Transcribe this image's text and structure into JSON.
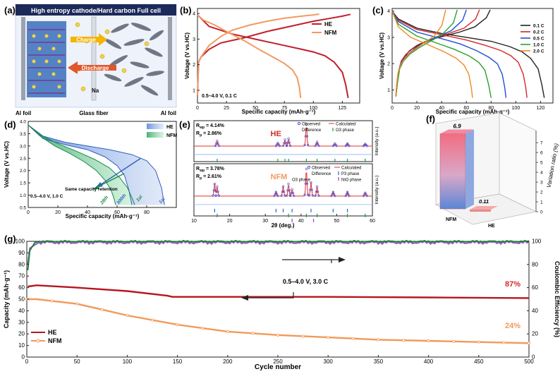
{
  "panels": {
    "a": {
      "label": "(a)",
      "title": "High entropy cathode/Hard carbon Full cell",
      "charge": "Charge",
      "discharge": "Discharge",
      "na": "Na",
      "al_left": "Al foil",
      "glass": "Glass fiber",
      "al_right": "Al foil"
    },
    "f": {
      "label": "(f)",
      "ylabel": "Variation ratio (%)",
      "bars": [
        {
          "name": "NFM",
          "value": 6.9,
          "label": "6.9"
        },
        {
          "name": "HE",
          "value": 0.11,
          "label": "0.11"
        }
      ],
      "yticks": [
        "0",
        "1",
        "2",
        "3",
        "4",
        "5",
        "6",
        "7"
      ]
    }
  },
  "colors": {
    "he": "#c0202a",
    "nfm": "#f39a60",
    "cycle_he": "#b5171f",
    "cycle_nfm": "#f2995a",
    "ce_he": "#1f7f3a",
    "ce_nfm": "#8a5fb0"
  },
  "chart_data": [
    {
      "id": "b",
      "label": "(b)",
      "type": "line",
      "xlabel": "Specific capacity (mAh·g⁻¹)",
      "ylabel": "Voltage (V vs.HC)",
      "xlim": [
        0,
        140
      ],
      "ylim": [
        0.5,
        4.2
      ],
      "xticks": [
        "0",
        "25",
        "50",
        "75",
        "100",
        "125"
      ],
      "yticks": [
        "1",
        "2",
        "3",
        "4"
      ],
      "annotation": "0.5–4.0 V, 0.1 C",
      "legend": [
        "HE",
        "NFM"
      ],
      "series": [
        {
          "name": "HE charge",
          "x": [
            0,
            1,
            3,
            10,
            20,
            40,
            60,
            80,
            100,
            115,
            125,
            132
          ],
          "y": [
            0.8,
            2.1,
            2.3,
            2.6,
            2.85,
            3.05,
            3.3,
            3.5,
            3.7,
            3.82,
            3.9,
            3.97
          ]
        },
        {
          "name": "HE discharge",
          "x": [
            0,
            10,
            30,
            50,
            70,
            90,
            100,
            110,
            118,
            125,
            128,
            130
          ],
          "y": [
            3.95,
            3.5,
            3.2,
            3.0,
            2.8,
            2.6,
            2.5,
            2.35,
            2.1,
            1.7,
            1.2,
            0.7
          ]
        },
        {
          "name": "NFM charge",
          "x": [
            0,
            1,
            3,
            10,
            20,
            30,
            45,
            60,
            75,
            90,
            100,
            105
          ],
          "y": [
            0.8,
            2.1,
            2.3,
            2.75,
            3.1,
            3.35,
            3.55,
            3.7,
            3.82,
            3.9,
            3.95,
            3.98
          ]
        },
        {
          "name": "NFM discharge",
          "x": [
            0,
            5,
            15,
            25,
            40,
            55,
            65,
            75,
            82,
            86,
            88,
            89
          ],
          "y": [
            3.95,
            3.75,
            3.55,
            3.3,
            2.95,
            2.55,
            2.3,
            2.05,
            1.8,
            1.5,
            1.1,
            0.7
          ]
        }
      ]
    },
    {
      "id": "c",
      "label": "(c)",
      "type": "line",
      "xlabel": "Specific capacity (mAh·g⁻¹)",
      "ylabel": "Voltage (V vs.HC)",
      "xlim": [
        0,
        130
      ],
      "ylim": [
        0.5,
        4.1
      ],
      "xticks": [
        "0",
        "20",
        "40",
        "60",
        "80",
        "100",
        "120"
      ],
      "yticks": [
        "1",
        "2",
        "3",
        "4"
      ],
      "legend": [
        "0.1 C",
        "0.2 C",
        "0.5 C",
        "1.0 C",
        "2.0 C"
      ],
      "series": [
        {
          "name": "0.1 C",
          "color": "#222222",
          "x": [
            0,
            5,
            20,
            40,
            60,
            80,
            95,
            105,
            112,
            118,
            121,
            123
          ],
          "y": [
            4.0,
            3.7,
            3.35,
            3.15,
            3.0,
            2.85,
            2.65,
            2.45,
            2.2,
            1.8,
            1.2,
            0.7
          ]
        },
        {
          "name": "0.2 C",
          "color": "#d62728",
          "x": [
            0,
            5,
            20,
            40,
            60,
            75,
            88,
            96,
            102,
            106,
            108,
            109
          ],
          "y": [
            4.0,
            3.65,
            3.3,
            3.1,
            2.9,
            2.7,
            2.5,
            2.3,
            2.05,
            1.6,
            1.1,
            0.7
          ]
        },
        {
          "name": "0.5 C",
          "color": "#1f4fd6",
          "x": [
            0,
            5,
            20,
            40,
            55,
            68,
            78,
            85,
            89,
            91,
            92
          ],
          "y": [
            4.0,
            3.6,
            3.2,
            2.95,
            2.75,
            2.5,
            2.25,
            2.0,
            1.6,
            1.1,
            0.7
          ]
        },
        {
          "name": "1.0 C",
          "color": "#2ca02c",
          "x": [
            0,
            5,
            20,
            35,
            50,
            62,
            70,
            75,
            78,
            80
          ],
          "y": [
            4.0,
            3.5,
            3.05,
            2.8,
            2.55,
            2.3,
            2.05,
            1.75,
            1.2,
            0.7
          ]
        },
        {
          "name": "2.0 C",
          "color": "#f08a24",
          "x": [
            0,
            5,
            15,
            30,
            42,
            52,
            58,
            62,
            64,
            65
          ],
          "y": [
            4.0,
            3.4,
            3.0,
            2.7,
            2.45,
            2.2,
            1.95,
            1.6,
            1.1,
            0.7
          ]
        }
      ]
    },
    {
      "id": "d",
      "label": "(d)",
      "type": "area",
      "xlabel": "Specific capacity (mAh·g⁻¹)",
      "ylabel": "Voltage (V vs.HC)",
      "xlim": [
        0,
        100
      ],
      "ylim": [
        0.5,
        4.0
      ],
      "xticks": [
        "0",
        "20",
        "40",
        "60",
        "80"
      ],
      "yticks": [
        "0.5",
        "1.0",
        "1.5",
        "2.0",
        "2.5",
        "3.0",
        "3.5",
        "4.0"
      ],
      "annotation": "0.5–4.0 V, 1.0 C",
      "note": "Same capacity retention",
      "legend": [
        "HE",
        "NFM"
      ],
      "cycle_labels": [
        "28th",
        "300th",
        "1st",
        "1st"
      ],
      "series": [
        {
          "name": "HE 1st",
          "x": [
            0,
            10,
            25,
            40,
            55,
            70,
            80,
            86,
            90,
            92
          ],
          "y": [
            3.85,
            3.4,
            3.15,
            3.0,
            2.85,
            2.65,
            2.4,
            2.0,
            1.3,
            0.6
          ]
        },
        {
          "name": "HE 300th",
          "x": [
            0,
            10,
            25,
            40,
            52,
            60,
            65,
            68,
            70
          ],
          "y": [
            3.85,
            3.3,
            3.05,
            2.85,
            2.55,
            2.2,
            1.8,
            1.2,
            0.6
          ]
        },
        {
          "name": "NFM 1st",
          "x": [
            0,
            8,
            20,
            32,
            45,
            55,
            62,
            67,
            70,
            72
          ],
          "y": [
            3.85,
            3.45,
            3.1,
            2.8,
            2.45,
            2.1,
            1.7,
            1.3,
            0.9,
            0.6
          ]
        },
        {
          "name": "NFM 28th",
          "x": [
            0,
            8,
            18,
            28,
            38,
            46,
            52,
            56,
            58,
            59
          ],
          "y": [
            3.85,
            3.4,
            3.0,
            2.7,
            2.35,
            2.0,
            1.6,
            1.2,
            0.85,
            0.6
          ]
        }
      ]
    },
    {
      "id": "e",
      "label": "(e)",
      "type": "line",
      "xlabel": "2θ (deg.)",
      "ylabel": "Intensity (a.u.)",
      "xlim": [
        10,
        60
      ],
      "xticks": [
        "10",
        "20",
        "30",
        "40",
        "50",
        "60"
      ],
      "top": {
        "name": "HE",
        "rwp": "R",
        "rwp_sub": "wp",
        "rwp_val": " = 4.14%",
        "rp": "R",
        "rp_sub": "p",
        "rp_val": " = 2.86%",
        "legend": [
          "Observed",
          "Calculated",
          "Difference",
          "O3 phase"
        ],
        "peaks_x": [
          16.5,
          33.5,
          35.5,
          36.5,
          41.5,
          44.5,
          49.5,
          53.0,
          58.0
        ],
        "peaks_h": [
          0.25,
          0.15,
          0.3,
          0.35,
          1.0,
          0.2,
          0.12,
          0.12,
          0.1
        ]
      },
      "bottom": {
        "name": "NFM",
        "rwp": "R",
        "rwp_sub": "wp",
        "rwp_val": " = 3.78%",
        "rp": "R",
        "rp_sub": "p",
        "rp_val": " = 2.61%",
        "legend": [
          "Observed",
          "Calculated",
          "Difference",
          "P3 phase",
          "O3 phase",
          "NiO phase"
        ],
        "peaks_x": [
          15.8,
          16.5,
          33.0,
          35.0,
          36.5,
          37.5,
          41.5,
          42.8,
          44.5,
          49.0,
          53.0,
          58.0
        ],
        "peaks_h": [
          0.45,
          0.35,
          0.15,
          0.35,
          0.45,
          0.25,
          1.0,
          0.5,
          0.35,
          0.15,
          0.15,
          0.12
        ]
      }
    },
    {
      "id": "g",
      "label": "(g)",
      "type": "line",
      "xlabel": "Cycle number",
      "ylabel": "Capacity (mAh·g⁻¹)",
      "y2label": "Coulombic Efficiency (%)",
      "xlim": [
        0,
        500
      ],
      "ylim": [
        0,
        100
      ],
      "y2lim": [
        0,
        100
      ],
      "xticks": [
        "0",
        "50",
        "100",
        "150",
        "200",
        "250",
        "300",
        "350",
        "400",
        "450",
        "500"
      ],
      "yticks": [
        "0",
        "10",
        "20",
        "30",
        "40",
        "50",
        "60",
        "70",
        "80",
        "90",
        "100"
      ],
      "y2ticks": [
        "0",
        "20",
        "40",
        "60",
        "80",
        "100"
      ],
      "annotation": "0.5–4.0 V, 3.0 C",
      "he_retention": "87%",
      "nfm_retention": "24%",
      "legend": [
        "HE",
        "NFM"
      ],
      "series": [
        {
          "name": "HE",
          "x": [
            1,
            10,
            50,
            100,
            140,
            145,
            200,
            300,
            400,
            500
          ],
          "y": [
            61,
            62,
            60,
            57,
            53,
            52,
            52,
            52,
            51.5,
            51
          ]
        },
        {
          "name": "NFM",
          "x": [
            1,
            10,
            30,
            50,
            70,
            100,
            150,
            200,
            250,
            300,
            350,
            400,
            450,
            500
          ],
          "y": [
            50,
            50,
            48,
            46,
            42,
            36,
            28,
            22,
            19,
            17,
            15,
            14,
            13,
            12
          ]
        },
        {
          "name": "CE HE",
          "x": [
            1,
            5,
            10,
            500
          ],
          "y": [
            75,
            98,
            100,
            100
          ]
        },
        {
          "name": "CE NFM",
          "x": [
            1,
            5,
            10,
            500
          ],
          "y": [
            80,
            97,
            99,
            99
          ]
        }
      ]
    }
  ]
}
